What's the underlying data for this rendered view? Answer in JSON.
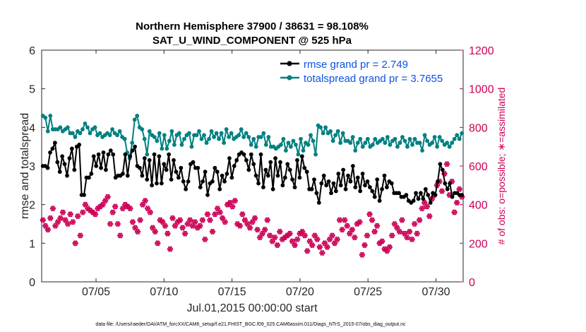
{
  "chart_data": {
    "type": "line",
    "title": "Northern Hemisphere 37900 / 38631 = 98.108%",
    "subtitle": "SAT_U_WIND_COMPONENT @ 525 hPa",
    "xlabel": "Jul.01,2015 00:00:00 start",
    "ylabel": "rmse and totalspread",
    "ylabel_right": "# of obs: o=possible; ∗=assimilated",
    "footnote": "data file: /Users/raeder/DAI/ATM_forcXX/CAM6_setup/f.e21.FHIST_BGC.f09_025.CAM6assim.011/Diags_NTrS_2015-07/obs_diag_output.nc",
    "xlim_days": [
      1,
      32
    ],
    "ylim": [
      0,
      6
    ],
    "ylim_right": [
      0,
      1200
    ],
    "xticks": [
      {
        "day": 5,
        "label": "07/05"
      },
      {
        "day": 10,
        "label": "07/10"
      },
      {
        "day": 15,
        "label": "07/15"
      },
      {
        "day": 20,
        "label": "07/20"
      },
      {
        "day": 25,
        "label": "07/25"
      },
      {
        "day": 30,
        "label": "07/30"
      }
    ],
    "yticks": [
      "0",
      "1",
      "2",
      "3",
      "4",
      "5",
      "6"
    ],
    "yticks_right": [
      "0",
      "200",
      "400",
      "600",
      "800",
      "1000",
      "1200"
    ],
    "legend_position": "top-right",
    "series": [
      {
        "name": "rmse grand pr = 2.749",
        "color": "#000000",
        "marker": "dot",
        "values": [
          3.0,
          3.0,
          2.95,
          3.35,
          3.45,
          3.6,
          3.1,
          2.85,
          3.25,
          3.05,
          2.75,
          3.2,
          3.45,
          2.9,
          3.5,
          3.55,
          2.25,
          2.25,
          2.7,
          2.7,
          2.8,
          3.25,
          3.0,
          3.3,
          2.95,
          3.35,
          2.9,
          3.3,
          3.4,
          3.3,
          2.7,
          2.75,
          2.75,
          2.8,
          3.3,
          2.75,
          3.25,
          3.4,
          3.5,
          3.0,
          2.95,
          2.75,
          3.2,
          2.65,
          3.15,
          2.5,
          3.3,
          2.55,
          3.25,
          2.55,
          3.05,
          2.9,
          3.3,
          2.65,
          3.15,
          2.85,
          2.7,
          2.95,
          2.6,
          2.4,
          2.6,
          3.05,
          3.1,
          2.95,
          2.95,
          2.45,
          2.6,
          2.85,
          2.25,
          2.55,
          2.6,
          2.95,
          2.85,
          2.4,
          2.75,
          2.6,
          2.8,
          3.2,
          2.7,
          3.0,
          3.15,
          3.3,
          3.35,
          3.3,
          3.15,
          2.9,
          3.3,
          3.05,
          2.75,
          2.55,
          3.3,
          2.45,
          2.9,
          2.75,
          3.1,
          2.4,
          3.2,
          2.75,
          3.1,
          2.5,
          2.7,
          3.05,
          2.9,
          2.65,
          2.45,
          3.15,
          2.7,
          3.25,
          2.95,
          2.85,
          2.4,
          2.4,
          2.65,
          2.3,
          2.05,
          2.55,
          2.75,
          2.5,
          2.6,
          2.3,
          2.55,
          2.35,
          2.8,
          2.5,
          2.9,
          2.4,
          2.75,
          2.6,
          3.0,
          2.45,
          2.7,
          2.35,
          2.8,
          2.5,
          2.6,
          2.45,
          2.35,
          2.2,
          2.65,
          2.1,
          2.4,
          2.75,
          2.45,
          2.6,
          2.55,
          2.3,
          2.3,
          2.3,
          2.2,
          2.2,
          2.25,
          2.1,
          2.05,
          2.1,
          2.3,
          2.15,
          2.3,
          2.15,
          2.4,
          2.25,
          2.05,
          2.3,
          2.25,
          2.6,
          3.05,
          2.9,
          2.55,
          2.4,
          2.55,
          2.2,
          2.3,
          2.3,
          2.25,
          2.25
        ]
      },
      {
        "name": "totalspread grand pr = 3.7655",
        "color": "#008080",
        "marker": "dot",
        "values": [
          4.3,
          4.25,
          3.9,
          4.3,
          3.95,
          3.95,
          3.95,
          4.0,
          3.9,
          3.95,
          4.0,
          3.85,
          3.85,
          3.75,
          3.9,
          3.85,
          3.95,
          4.1,
          4.0,
          3.85,
          3.95,
          4.0,
          3.8,
          3.85,
          3.75,
          3.8,
          3.85,
          3.8,
          3.95,
          3.85,
          3.8,
          3.9,
          3.75,
          3.7,
          3.35,
          3.2,
          3.6,
          4.2,
          4.3,
          4.0,
          3.95,
          3.7,
          3.3,
          3.9,
          3.8,
          3.75,
          3.65,
          3.85,
          3.45,
          3.8,
          3.45,
          3.65,
          3.9,
          3.55,
          3.8,
          3.85,
          3.55,
          3.7,
          3.8,
          3.85,
          3.5,
          3.8,
          3.8,
          3.9,
          3.7,
          3.8,
          3.6,
          3.7,
          3.9,
          3.75,
          3.85,
          3.7,
          3.85,
          3.6,
          3.95,
          3.75,
          3.85,
          3.7,
          3.75,
          3.8,
          3.95,
          3.75,
          3.85,
          3.75,
          3.55,
          3.7,
          3.5,
          3.75,
          3.75,
          3.85,
          3.55,
          3.75,
          3.5,
          3.5,
          3.45,
          3.5,
          3.55,
          3.7,
          3.4,
          3.6,
          3.5,
          3.65,
          3.55,
          3.3,
          3.7,
          3.4,
          3.6,
          3.55,
          3.8,
          3.65,
          3.3,
          4.05,
          4.0,
          3.85,
          4.0,
          3.85,
          3.9,
          3.65,
          3.8,
          3.9,
          3.6,
          3.85,
          3.65,
          3.65,
          3.6,
          3.75,
          3.4,
          3.6,
          3.7,
          3.5,
          3.6,
          3.7,
          3.5,
          3.55,
          3.7,
          3.6,
          3.65,
          3.7,
          3.6,
          3.75,
          3.55,
          3.65,
          3.7,
          3.5,
          3.6,
          3.75,
          3.65,
          3.5,
          3.7,
          3.55,
          3.7,
          3.6,
          3.6,
          3.4,
          3.8,
          3.65,
          3.55,
          3.6,
          3.75,
          3.5,
          3.75,
          3.65,
          3.55,
          3.6,
          3.5,
          3.6,
          3.7,
          3.8,
          3.7,
          3.85
        ]
      },
      {
        "name": "obs assimilated",
        "axis": "right",
        "color": "#cc0055",
        "marker": "asterisk",
        "values": [
          320,
          290,
          270,
          330,
          380,
          290,
          310,
          330,
          360,
          320,
          300,
          350,
          310,
          200,
          340,
          240,
          360,
          400,
          380,
          370,
          360,
          350,
          380,
          390,
          400,
          420,
          440,
          300,
          360,
          390,
          300,
          240,
          380,
          400,
          390,
          380,
          310,
          280,
          260,
          320,
          400,
          420,
          380,
          360,
          280,
          260,
          200,
          320,
          310,
          290,
          250,
          170,
          330,
          290,
          310,
          320,
          280,
          250,
          300,
          320,
          290,
          310,
          280,
          290,
          320,
          220,
          350,
          320,
          260,
          350,
          380,
          360,
          330,
          310,
          400,
          410,
          390,
          420,
          300,
          290,
          350,
          320,
          300,
          280,
          310,
          330,
          270,
          230,
          250,
          270,
          320,
          240,
          210,
          230,
          190,
          260,
          220,
          230,
          240,
          250,
          210,
          190,
          220,
          250,
          260,
          240,
          160,
          210,
          190,
          240,
          220,
          180,
          150,
          200,
          180,
          220,
          240,
          200,
          220,
          320,
          270,
          320,
          290,
          250,
          270,
          230,
          300,
          310,
          140,
          190,
          240,
          350,
          320,
          260,
          290,
          200,
          210,
          170,
          160,
          180,
          240,
          300,
          280,
          260,
          320,
          250,
          230,
          260,
          220,
          300,
          250,
          320,
          380,
          410,
          390,
          340,
          430,
          450,
          500,
          520,
          470,
          560,
          610,
          450,
          520,
          360,
          410,
          480,
          440
        ]
      },
      {
        "name": "obs possible",
        "axis": "right",
        "color": "#cc0055",
        "marker": "circle",
        "values": [
          320,
          290,
          270,
          330,
          380,
          290,
          310,
          330,
          360,
          320,
          300,
          350,
          310,
          200,
          340,
          240,
          360,
          400,
          380,
          370,
          360,
          350,
          380,
          390,
          400,
          420,
          440,
          300,
          360,
          390,
          300,
          240,
          380,
          400,
          390,
          380,
          310,
          280,
          260,
          320,
          400,
          420,
          380,
          360,
          280,
          260,
          200,
          320,
          310,
          290,
          250,
          170,
          330,
          290,
          310,
          320,
          280,
          250,
          300,
          320,
          290,
          310,
          280,
          290,
          320,
          220,
          350,
          320,
          260,
          350,
          380,
          360,
          330,
          310,
          400,
          410,
          390,
          420,
          300,
          290,
          350,
          320,
          300,
          280,
          310,
          330,
          270,
          230,
          250,
          270,
          320,
          240,
          210,
          230,
          190,
          260,
          220,
          230,
          240,
          250,
          210,
          190,
          220,
          250,
          260,
          240,
          160,
          210,
          190,
          240,
          220,
          180,
          150,
          200,
          180,
          220,
          240,
          200,
          220,
          320,
          270,
          320,
          290,
          250,
          270,
          230,
          300,
          310,
          140,
          190,
          240,
          350,
          320,
          260,
          290,
          200,
          210,
          170,
          160,
          180,
          240,
          300,
          280,
          260,
          320,
          250,
          230,
          260,
          220,
          300,
          250,
          320,
          380,
          410,
          390,
          340,
          430,
          450,
          500,
          520,
          470,
          560,
          610,
          450,
          520,
          360,
          410,
          480,
          440
        ]
      }
    ]
  }
}
